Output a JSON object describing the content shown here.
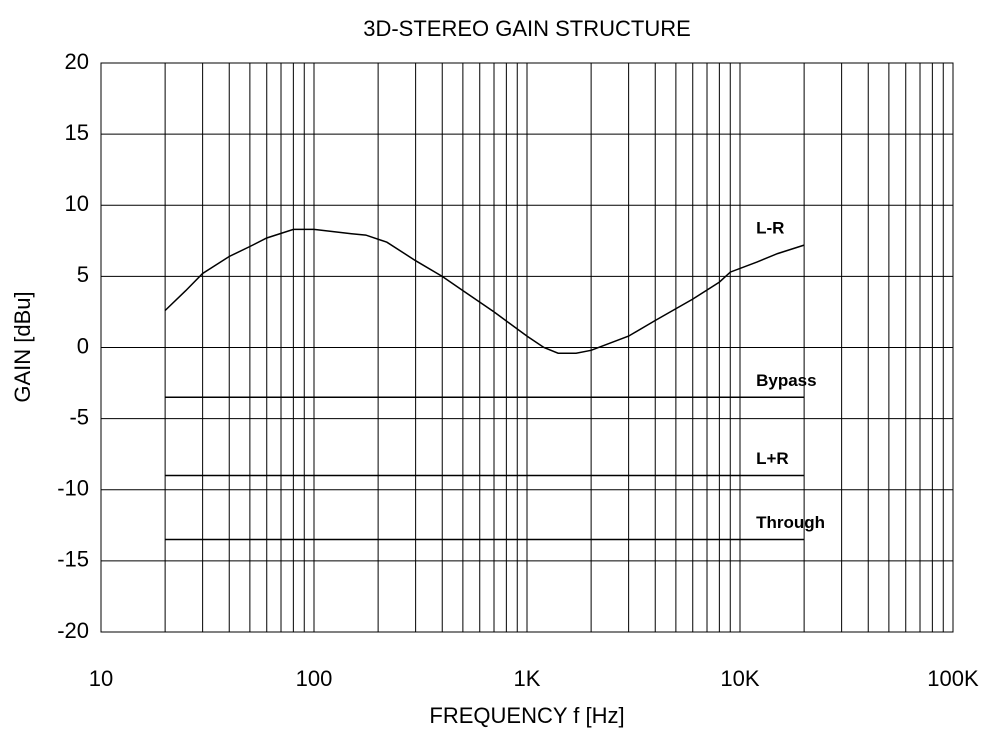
{
  "chart_data": {
    "type": "line",
    "title": "3D-STEREO GAIN STRUCTURE",
    "xlabel": "FREQUENCY f [Hz]",
    "ylabel": "GAIN [dBu]",
    "xscale": "log",
    "xlim": [
      10,
      100000
    ],
    "xticks": [
      10,
      100,
      {
        "value": 1000,
        "label": "1K"
      },
      {
        "value": 10000,
        "label": "10K"
      },
      {
        "value": 100000,
        "label": "100K"
      }
    ],
    "xminorticks": [
      20,
      30,
      40,
      50,
      60,
      70,
      80,
      90,
      200,
      300,
      400,
      500,
      600,
      700,
      800,
      900,
      2000,
      3000,
      4000,
      5000,
      6000,
      7000,
      8000,
      9000,
      20000,
      30000,
      40000,
      50000,
      60000,
      70000,
      80000,
      90000
    ],
    "ylim": [
      -20,
      20
    ],
    "yticks": [
      -20,
      -15,
      -10,
      -5,
      0,
      5,
      10,
      15,
      20
    ],
    "grid": true,
    "series": [
      {
        "name": "L-R",
        "color": "#000000",
        "x": [
          20,
          25,
          30,
          40,
          50,
          60,
          80,
          100,
          150,
          175,
          220,
          300,
          400,
          500,
          700,
          1000,
          1200,
          1400,
          1700,
          2000,
          3000,
          4000,
          6000,
          8000,
          9000,
          12000,
          15000,
          20000
        ],
        "values": [
          2.6,
          4.0,
          5.2,
          6.4,
          7.1,
          7.7,
          8.3,
          8.3,
          8.0,
          7.9,
          7.4,
          6.1,
          5.0,
          4.0,
          2.5,
          0.8,
          0.0,
          -0.4,
          -0.4,
          -0.2,
          0.8,
          1.9,
          3.4,
          4.6,
          5.3,
          6.0,
          6.6,
          7.2
        ]
      },
      {
        "name": "Bypass",
        "color": "#000000",
        "x": [
          20,
          20000
        ],
        "values": [
          -3.5,
          -3.5
        ]
      },
      {
        "name": "L+R",
        "color": "#000000",
        "x": [
          20,
          20000
        ],
        "values": [
          -9,
          -9
        ]
      },
      {
        "name": "Through",
        "color": "#000000",
        "x": [
          20,
          20000
        ],
        "values": [
          -13.5,
          -13.5
        ]
      }
    ]
  }
}
